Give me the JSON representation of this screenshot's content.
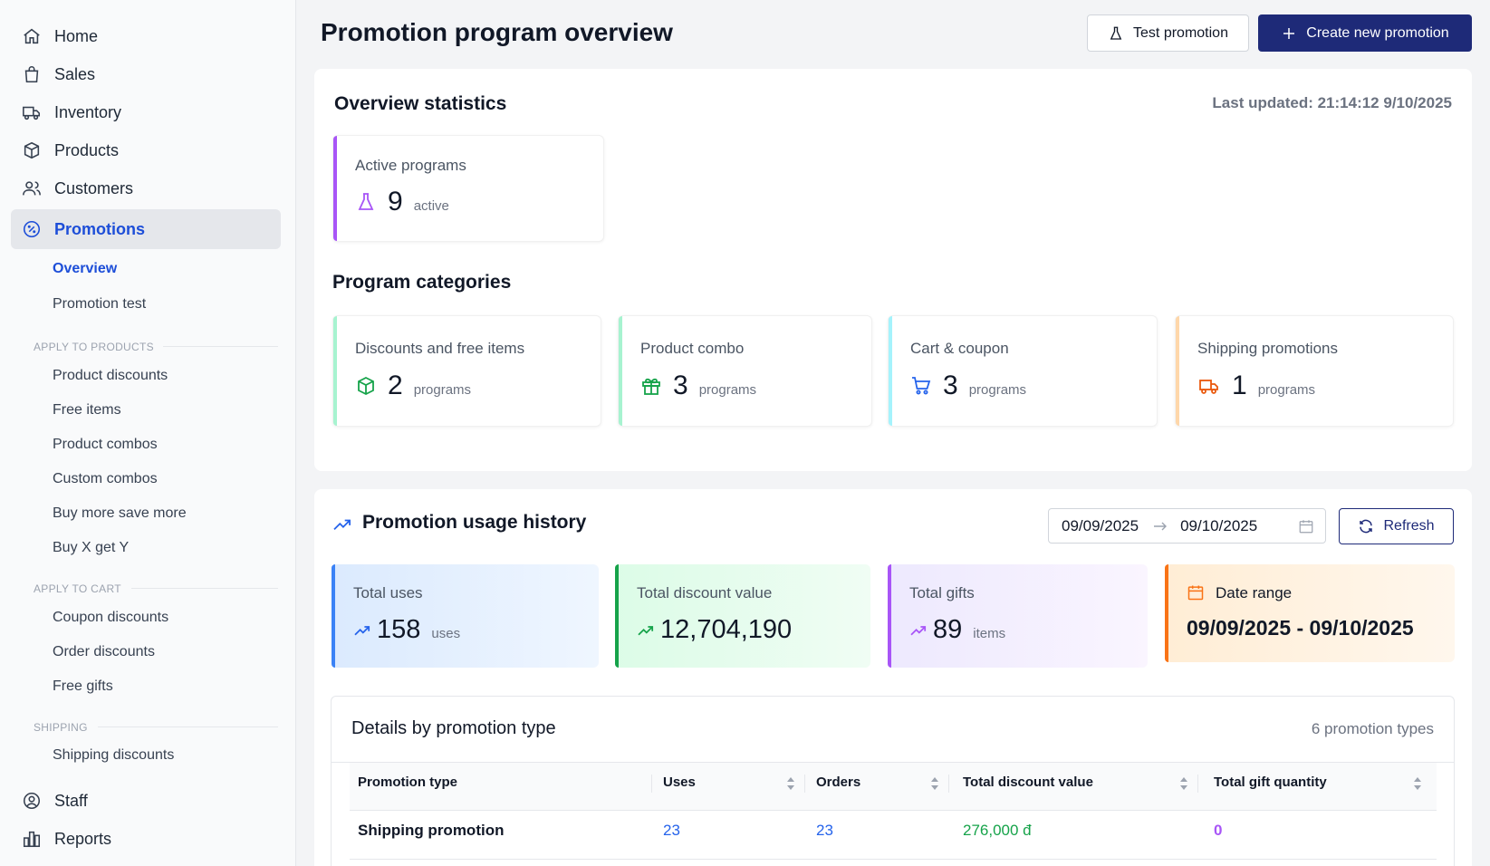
{
  "sidebar": {
    "nav": [
      {
        "label": "Home",
        "icon": "home-icon"
      },
      {
        "label": "Sales",
        "icon": "shopping-bag-icon"
      },
      {
        "label": "Inventory",
        "icon": "truck-icon"
      },
      {
        "label": "Products",
        "icon": "box-icon"
      },
      {
        "label": "Customers",
        "icon": "users-icon"
      },
      {
        "label": "Promotions",
        "icon": "percent-badge-icon"
      }
    ],
    "promotions_sub": [
      {
        "label": "Overview"
      },
      {
        "label": "Promotion test"
      }
    ],
    "sections": {
      "apply_to_products": "APPLY TO PRODUCTS",
      "apply_to_cart": "APPLY TO CART",
      "shipping": "SHIPPING"
    },
    "product_items": [
      "Product discounts",
      "Free items",
      "Product combos",
      "Custom combos",
      "Buy more save more",
      "Buy X get Y"
    ],
    "cart_items": [
      "Coupon discounts",
      "Order discounts",
      "Free gifts"
    ],
    "shipping_items": [
      "Shipping discounts"
    ],
    "bottom_nav": [
      {
        "label": "Staff",
        "icon": "user-circle-icon"
      },
      {
        "label": "Reports",
        "icon": "bar-chart-icon"
      }
    ]
  },
  "header": {
    "title": "Promotion program overview",
    "test_button": "Test promotion",
    "create_button": "Create new promotion"
  },
  "overview": {
    "title": "Overview statistics",
    "last_updated": "Last updated: 21:14:12 9/10/2025",
    "active": {
      "label": "Active programs",
      "value": "9",
      "unit": "active"
    },
    "categories_title": "Program categories",
    "categories": [
      {
        "label": "Discounts and free items",
        "value": "2",
        "unit": "programs",
        "icon": "cube-icon",
        "color": "#16a34a"
      },
      {
        "label": "Product combo",
        "value": "3",
        "unit": "programs",
        "icon": "gift-icon",
        "color": "#16a34a"
      },
      {
        "label": "Cart & coupon",
        "value": "3",
        "unit": "programs",
        "icon": "cart-icon",
        "color": "#2563eb"
      },
      {
        "label": "Shipping promotions",
        "value": "1",
        "unit": "programs",
        "icon": "truck-icon",
        "color": "#ea580c"
      }
    ]
  },
  "usage": {
    "title": "Promotion usage history",
    "date_from": "09/09/2025",
    "date_to": "09/10/2025",
    "refresh": "Refresh",
    "cards": {
      "uses": {
        "label": "Total uses",
        "value": "158",
        "unit": "uses"
      },
      "discount": {
        "label": "Total discount value",
        "value": "12,704,190"
      },
      "gifts": {
        "label": "Total gifts",
        "value": "89",
        "unit": "items"
      },
      "range": {
        "label": "Date range",
        "value": "09/09/2025 - 09/10/2025"
      }
    }
  },
  "details": {
    "title": "Details by promotion type",
    "count": "6 promotion types",
    "columns": [
      "Promotion type",
      "Uses",
      "Orders",
      "Total discount value",
      "Total gift quantity"
    ],
    "rows": [
      {
        "type": "Shipping promotion",
        "uses": "23",
        "orders": "23",
        "discount": "276,000 đ",
        "gifts": "0"
      }
    ]
  }
}
